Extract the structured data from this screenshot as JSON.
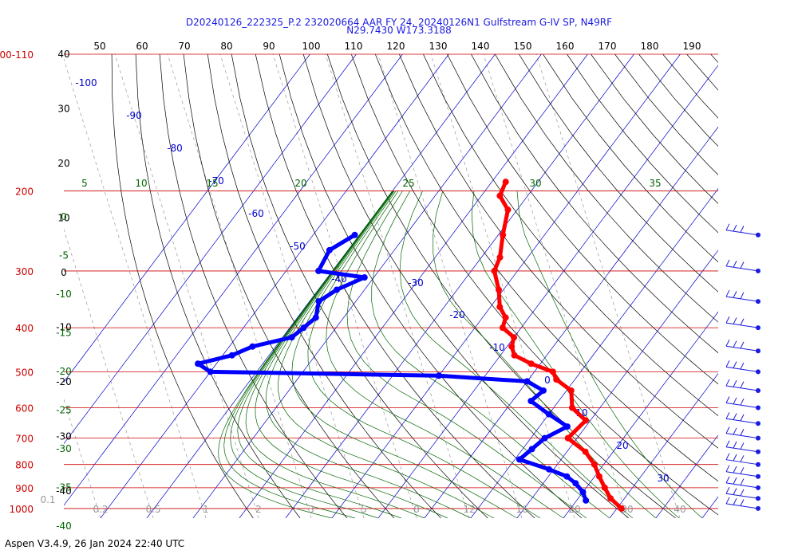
{
  "chart_data": {
    "type": "scatter",
    "title_line1": "D20240126_222325_P.2 232020664 AAR FY 24, 20240126N1 Gulfstream G-IV SP, N49RF",
    "title_line2": "N29.7430 W173.3188",
    "footer": "Aspen V3.4.9, 26 Jan 2024  22:40 UTC",
    "pressure_levels": [
      {
        "label": "100-110",
        "value": 100
      },
      {
        "label": "200",
        "value": 200
      },
      {
        "label": "300",
        "value": 300
      },
      {
        "label": "400",
        "value": 400
      },
      {
        "label": "500",
        "value": 500
      },
      {
        "label": "600",
        "value": 600
      },
      {
        "label": "700",
        "value": 700
      },
      {
        "label": "800",
        "value": 800
      },
      {
        "label": "900",
        "value": 900
      },
      {
        "label": "1000",
        "value": 1000
      }
    ],
    "top_ticks": [
      "50",
      "60",
      "70",
      "80",
      "90",
      "100",
      "110",
      "120",
      "130",
      "140",
      "150",
      "160",
      "170",
      "180",
      "190"
    ],
    "left_ticks": [
      "40",
      "30",
      "20",
      "10",
      "0",
      "-10",
      "-20",
      "-30",
      "-40"
    ],
    "isotherm_labels": [
      "-100",
      "-90",
      "-80",
      "-70",
      "-60",
      "-50",
      "-40",
      "-30",
      "-20",
      "-10",
      "0",
      "10",
      "20",
      "30"
    ],
    "dry_adiabat_labels": [
      "0",
      "-5",
      "-10",
      "-15",
      "-20",
      "-25",
      "-30",
      "-35",
      "-40"
    ],
    "moist_labels": [
      "5",
      "10",
      "15",
      "20",
      "25",
      "30",
      "35"
    ],
    "mixing_ratio_labels": [
      "0.1",
      "0.2",
      "0.5",
      "1",
      "2",
      "3",
      "5",
      "8",
      "12",
      "16",
      "20",
      "30",
      "40"
    ],
    "temperature_profile": [
      [
        191,
        -57
      ],
      [
        205,
        -56
      ],
      [
        220,
        -52
      ],
      [
        250,
        -49
      ],
      [
        280,
        -46
      ],
      [
        300,
        -45
      ],
      [
        330,
        -41
      ],
      [
        360,
        -38
      ],
      [
        380,
        -35
      ],
      [
        400,
        -34
      ],
      [
        420,
        -30
      ],
      [
        440,
        -29
      ],
      [
        460,
        -27
      ],
      [
        480,
        -22
      ],
      [
        500,
        -16
      ],
      [
        520,
        -14
      ],
      [
        550,
        -9
      ],
      [
        600,
        -6
      ],
      [
        640,
        -1
      ],
      [
        700,
        -2
      ],
      [
        750,
        4
      ],
      [
        800,
        8
      ],
      [
        850,
        11
      ],
      [
        900,
        14
      ],
      [
        950,
        17
      ],
      [
        1000,
        21
      ]
    ],
    "dewpoint_profile": [
      [
        250,
        -81
      ],
      [
        270,
        -84
      ],
      [
        300,
        -83
      ],
      [
        310,
        -72
      ],
      [
        330,
        -76
      ],
      [
        350,
        -78
      ],
      [
        380,
        -76
      ],
      [
        400,
        -77
      ],
      [
        420,
        -78
      ],
      [
        440,
        -85
      ],
      [
        460,
        -88
      ],
      [
        480,
        -94
      ],
      [
        500,
        -90
      ],
      [
        510,
        -40
      ],
      [
        525,
        -20
      ],
      [
        550,
        -15
      ],
      [
        580,
        -16
      ],
      [
        620,
        -10
      ],
      [
        660,
        -4
      ],
      [
        700,
        -7
      ],
      [
        740,
        -8
      ],
      [
        780,
        -9
      ],
      [
        820,
        -1
      ],
      [
        850,
        4
      ],
      [
        880,
        7
      ],
      [
        920,
        10
      ],
      [
        960,
        12
      ]
    ],
    "wind_barb_levels": [
      250,
      300,
      350,
      400,
      450,
      500,
      550,
      600,
      650,
      700,
      750,
      800,
      850,
      900,
      950,
      1000
    ],
    "colors": {
      "temperature": "#ff0000",
      "dewpoint": "#0000ff",
      "isobar": "#cc0000",
      "isotherm": "#0000cc",
      "dry_adiabat": "#000000",
      "moist_adiabat": "#006600",
      "mixing_ratio": "#999999",
      "title": "#1a1ae0"
    }
  }
}
